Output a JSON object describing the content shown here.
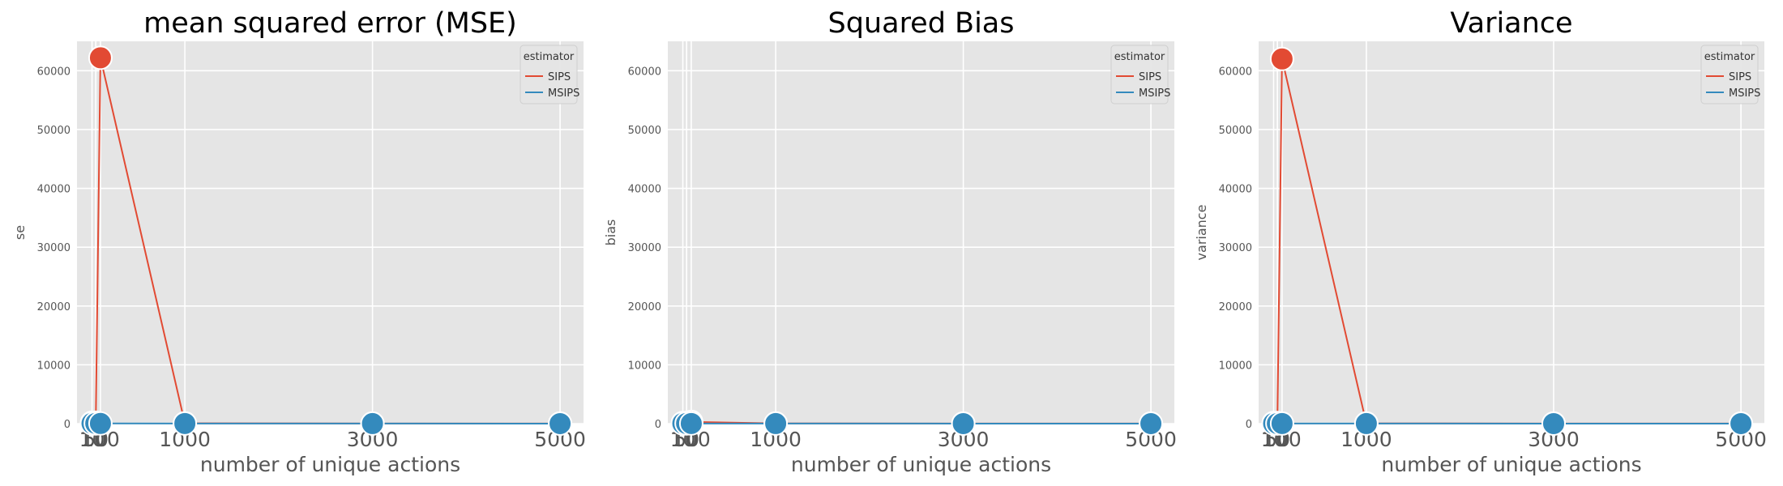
{
  "colors": {
    "panel_bg": "#E5E5E5",
    "grid": "#FFFFFF",
    "tick_label": "#555555",
    "title": "#000000",
    "SIPS": "#E24A33",
    "MSIPS": "#348ABD",
    "legend_bg": "#E5E5E5",
    "legend_border": "#CCCCCC"
  },
  "legend": {
    "title": "estimator",
    "placement": "top-right"
  },
  "chart_data": [
    {
      "type": "line",
      "title": "mean squared error (MSE)",
      "xlabel": "number of unique actions",
      "ylabel": "se",
      "x": [
        10,
        50,
        100,
        1000,
        3000,
        5000
      ],
      "xticks": [
        10,
        50,
        100,
        1000,
        3000,
        5000
      ],
      "xlim": [
        -150,
        5250
      ],
      "ylim": [
        0,
        65000
      ],
      "yticks": [
        0,
        10000,
        20000,
        30000,
        40000,
        50000,
        60000
      ],
      "grid": true,
      "series": [
        {
          "name": "SIPS",
          "values": [
            150,
            150,
            62200,
            60,
            25,
            15
          ]
        },
        {
          "name": "MSIPS",
          "values": [
            50,
            40,
            30,
            20,
            10,
            5
          ]
        }
      ]
    },
    {
      "type": "line",
      "title": "Squared Bias",
      "xlabel": "number of unique actions",
      "ylabel": "bias",
      "x": [
        10,
        50,
        100,
        1000,
        3000,
        5000
      ],
      "xticks": [
        10,
        50,
        100,
        1000,
        3000,
        5000
      ],
      "xlim": [
        -150,
        5250
      ],
      "ylim": [
        0,
        65000
      ],
      "yticks": [
        0,
        10000,
        20000,
        30000,
        40000,
        50000,
        60000
      ],
      "grid": true,
      "series": [
        {
          "name": "SIPS",
          "values": [
            100,
            120,
            300,
            40,
            15,
            10
          ]
        },
        {
          "name": "MSIPS",
          "values": [
            40,
            30,
            25,
            15,
            8,
            4
          ]
        }
      ]
    },
    {
      "type": "line",
      "title": "Variance",
      "xlabel": "number of unique actions",
      "ylabel": "variance",
      "x": [
        10,
        50,
        100,
        1000,
        3000,
        5000
      ],
      "xticks": [
        10,
        50,
        100,
        1000,
        3000,
        5000
      ],
      "xlim": [
        -150,
        5250
      ],
      "ylim": [
        0,
        65000
      ],
      "yticks": [
        0,
        10000,
        20000,
        30000,
        40000,
        50000,
        60000
      ],
      "grid": true,
      "series": [
        {
          "name": "SIPS",
          "values": [
            100,
            100,
            62000,
            40,
            15,
            10
          ]
        },
        {
          "name": "MSIPS",
          "values": [
            30,
            25,
            20,
            15,
            8,
            4
          ]
        }
      ]
    }
  ]
}
